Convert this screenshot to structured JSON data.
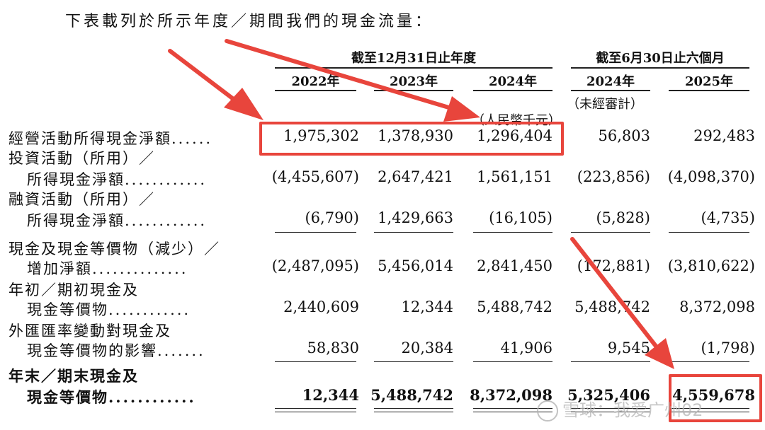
{
  "intro": "下表載列於所示年度／期間我們的現金流量：",
  "header": {
    "group_year": "截至12月31日止年度",
    "group_half": "截至6月30日止六個月",
    "columns": [
      "2022年",
      "2023年",
      "2024年",
      "2024年",
      "2025年"
    ],
    "unaudited": "（未經審計）",
    "currency": "（人民幣千元）"
  },
  "rows": [
    {
      "label": "經營活動所得現金淨額",
      "dots": "......",
      "values": [
        "1,975,302",
        "1,378,930",
        "1,296,404",
        "56,803",
        "292,483"
      ]
    },
    {
      "label": "投資活動（所用）／",
      "dots": "",
      "values": []
    },
    {
      "label": "所得現金淨額",
      "dots": "............",
      "values": [
        "(4,455,607)",
        "2,647,421",
        "1,561,151",
        "(223,856)",
        "(4,098,370)"
      ]
    },
    {
      "label": "融資活動（所用）／",
      "dots": "",
      "values": []
    },
    {
      "label": "所得現金淨額",
      "dots": "............",
      "values": [
        "(6,790)",
        "1,429,663",
        "(16,105)",
        "(5,828)",
        "(4,735)"
      ]
    },
    {
      "label": "現金及現金等價物（減少）／",
      "dots": "",
      "values": []
    },
    {
      "label": "增加淨額",
      "dots": "..............",
      "values": [
        "(2,487,095)",
        "5,456,014",
        "2,841,450",
        "(172,881)",
        "(3,810,622)"
      ]
    },
    {
      "label": "年初／期初現金及",
      "dots": "",
      "values": []
    },
    {
      "label": "現金等價物",
      "dots": "............",
      "values": [
        "2,440,609",
        "12,344",
        "5,488,742",
        "5,488,742",
        "8,372,098"
      ]
    },
    {
      "label": "外匯匯率變動對現金及",
      "dots": "",
      "values": []
    },
    {
      "label": "現金等價物的影響",
      "dots": ".......",
      "values": [
        "58,830",
        "20,384",
        "41,906",
        "9,545",
        "(1,798)"
      ]
    },
    {
      "label": "年末／期末現金及",
      "dots": "",
      "values": []
    },
    {
      "label": "現金等價物",
      "dots": "............",
      "values": [
        "12,344",
        "5,488,742",
        "8,372,098",
        "5,325,406",
        "4,559,678"
      ]
    }
  ],
  "watermark": "雪球：我爱广州02",
  "colors": {
    "annotation": "#e8453c",
    "text": "#111111"
  }
}
